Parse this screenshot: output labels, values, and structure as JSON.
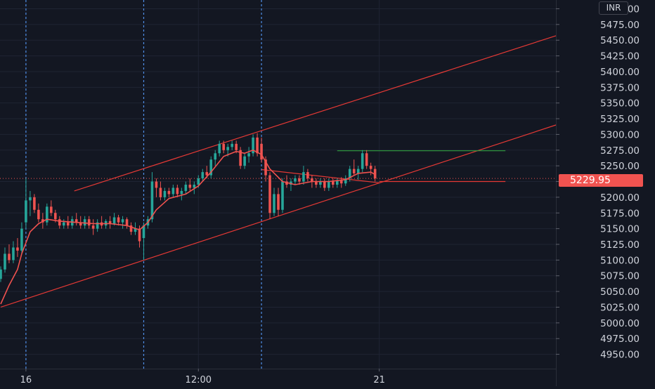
{
  "colors": {
    "background": "#131722",
    "grid": "#1f2433",
    "axis_text": "#d1d4dc",
    "bull": "#26a69a",
    "bear": "#ef5350",
    "ma_line": "#f0524f",
    "channel": "#e53935",
    "session_line": "#4f8fe8",
    "resistance": "#2e9e3e",
    "price_tag_bg": "#f05350"
  },
  "currency_label": "INR",
  "last_price_label": "5229.95",
  "chart_data": {
    "type": "candlestick",
    "title": "",
    "xlabel": "",
    "ylabel": "",
    "currency": "INR",
    "ylim": [
      4935,
      5505
    ],
    "y_ticks": [
      4950,
      4975,
      5000,
      5025,
      5050,
      5075,
      5100,
      5125,
      5150,
      5175,
      5200,
      5225,
      5250,
      5275,
      5300,
      5325,
      5350,
      5375,
      5400,
      5425,
      5450,
      5475,
      5500
    ],
    "y_tick_labels": [
      "4950.00",
      "4975.00",
      "5000.00",
      "5025.00",
      "5050.00",
      "5075.00",
      "5100.00",
      "5125.00",
      "5150.00",
      "5175.00",
      "5200.00",
      "5225.00",
      "5250.00",
      "5275.00",
      "5300.00",
      "5325.00",
      "5350.00",
      "5375.00",
      "5400.00",
      "5425.00",
      "5450.00",
      "5475.00",
      "5500.00"
    ],
    "x_range": [
      0,
      132
    ],
    "x_ticks": [
      {
        "x": 6,
        "label": "16"
      },
      {
        "x": 47,
        "label": "12:00"
      },
      {
        "x": 90,
        "label": "21"
      }
    ],
    "session_separators": [
      6,
      34,
      62
    ],
    "last_price": 5229.95,
    "candles": [
      [
        0,
        5070,
        5090,
        5065,
        5085
      ],
      [
        1,
        5085,
        5120,
        5080,
        5110
      ],
      [
        2,
        5110,
        5125,
        5095,
        5100
      ],
      [
        3,
        5100,
        5130,
        5095,
        5120
      ],
      [
        4,
        5120,
        5135,
        5105,
        5115
      ],
      [
        5,
        5115,
        5160,
        5110,
        5150
      ],
      [
        6,
        5160,
        5230,
        5150,
        5195
      ],
      [
        7,
        5195,
        5210,
        5170,
        5200
      ],
      [
        8,
        5200,
        5205,
        5175,
        5180
      ],
      [
        9,
        5180,
        5190,
        5160,
        5165
      ],
      [
        10,
        5165,
        5175,
        5150,
        5160
      ],
      [
        11,
        5160,
        5190,
        5155,
        5185
      ],
      [
        12,
        5185,
        5195,
        5170,
        5175
      ],
      [
        13,
        5175,
        5180,
        5160,
        5165
      ],
      [
        14,
        5165,
        5170,
        5150,
        5155
      ],
      [
        15,
        5155,
        5165,
        5150,
        5160
      ],
      [
        16,
        5160,
        5170,
        5150,
        5155
      ],
      [
        17,
        5155,
        5170,
        5150,
        5165
      ],
      [
        18,
        5165,
        5175,
        5155,
        5160
      ],
      [
        19,
        5160,
        5170,
        5150,
        5155
      ],
      [
        20,
        5155,
        5170,
        5150,
        5165
      ],
      [
        21,
        5165,
        5170,
        5150,
        5155
      ],
      [
        22,
        5155,
        5165,
        5140,
        5150
      ],
      [
        23,
        5150,
        5165,
        5145,
        5160
      ],
      [
        24,
        5160,
        5170,
        5150,
        5155
      ],
      [
        25,
        5155,
        5165,
        5150,
        5162
      ],
      [
        26,
        5162,
        5170,
        5150,
        5158
      ],
      [
        27,
        5158,
        5175,
        5155,
        5168
      ],
      [
        28,
        5168,
        5172,
        5155,
        5160
      ],
      [
        29,
        5160,
        5170,
        5150,
        5165
      ],
      [
        30,
        5165,
        5168,
        5150,
        5155
      ],
      [
        31,
        5155,
        5160,
        5140,
        5145
      ],
      [
        32,
        5145,
        5160,
        5140,
        5150
      ],
      [
        33,
        5150,
        5155,
        5120,
        5130
      ],
      [
        34,
        5135,
        5160,
        5100,
        5155
      ],
      [
        35,
        5155,
        5170,
        5150,
        5165
      ],
      [
        36,
        5165,
        5240,
        5160,
        5225
      ],
      [
        37,
        5225,
        5230,
        5200,
        5215
      ],
      [
        38,
        5215,
        5225,
        5195,
        5200
      ],
      [
        39,
        5200,
        5215,
        5195,
        5210
      ],
      [
        40,
        5210,
        5215,
        5200,
        5205
      ],
      [
        41,
        5205,
        5220,
        5200,
        5215
      ],
      [
        42,
        5215,
        5220,
        5200,
        5205
      ],
      [
        43,
        5205,
        5215,
        5195,
        5210
      ],
      [
        44,
        5210,
        5225,
        5205,
        5220
      ],
      [
        45,
        5220,
        5230,
        5210,
        5215
      ],
      [
        46,
        5215,
        5225,
        5205,
        5220
      ],
      [
        47,
        5220,
        5235,
        5215,
        5230
      ],
      [
        48,
        5230,
        5245,
        5225,
        5240
      ],
      [
        49,
        5240,
        5250,
        5230,
        5235
      ],
      [
        50,
        5235,
        5265,
        5230,
        5260
      ],
      [
        51,
        5260,
        5275,
        5250,
        5270
      ],
      [
        52,
        5270,
        5290,
        5265,
        5285
      ],
      [
        53,
        5285,
        5290,
        5270,
        5275
      ],
      [
        54,
        5275,
        5285,
        5265,
        5280
      ],
      [
        55,
        5280,
        5290,
        5275,
        5285
      ],
      [
        56,
        5285,
        5290,
        5270,
        5275
      ],
      [
        57,
        5275,
        5280,
        5245,
        5250
      ],
      [
        58,
        5250,
        5270,
        5245,
        5265
      ],
      [
        59,
        5265,
        5280,
        5255,
        5270
      ],
      [
        60,
        5270,
        5300,
        5265,
        5295
      ],
      [
        61,
        5295,
        5302,
        5265,
        5270
      ],
      [
        62,
        5285,
        5295,
        5255,
        5260
      ],
      [
        63,
        5260,
        5265,
        5225,
        5235
      ],
      [
        64,
        5235,
        5240,
        5165,
        5175
      ],
      [
        65,
        5175,
        5215,
        5170,
        5205
      ],
      [
        66,
        5205,
        5215,
        5170,
        5180
      ],
      [
        67,
        5180,
        5230,
        5175,
        5225
      ],
      [
        68,
        5225,
        5235,
        5215,
        5220
      ],
      [
        69,
        5220,
        5230,
        5210,
        5225
      ],
      [
        70,
        5225,
        5235,
        5220,
        5230
      ],
      [
        71,
        5230,
        5235,
        5220,
        5225
      ],
      [
        72,
        5225,
        5250,
        5220,
        5240
      ],
      [
        73,
        5240,
        5245,
        5225,
        5230
      ],
      [
        74,
        5230,
        5235,
        5215,
        5225
      ],
      [
        75,
        5225,
        5230,
        5215,
        5220
      ],
      [
        76,
        5220,
        5230,
        5215,
        5225
      ],
      [
        77,
        5225,
        5230,
        5210,
        5215
      ],
      [
        78,
        5215,
        5230,
        5210,
        5225
      ],
      [
        79,
        5225,
        5230,
        5215,
        5220
      ],
      [
        80,
        5220,
        5230,
        5215,
        5227
      ],
      [
        81,
        5227,
        5232,
        5215,
        5222
      ],
      [
        82,
        5222,
        5235,
        5218,
        5230
      ],
      [
        83,
        5230,
        5250,
        5225,
        5245
      ],
      [
        84,
        5245,
        5260,
        5235,
        5238
      ],
      [
        85,
        5238,
        5250,
        5228,
        5245
      ],
      [
        86,
        5245,
        5275,
        5240,
        5270
      ],
      [
        87,
        5270,
        5275,
        5245,
        5250
      ],
      [
        88,
        5250,
        5255,
        5235,
        5245
      ],
      [
        89,
        5245,
        5250,
        5225,
        5230
      ]
    ],
    "moving_average": [
      [
        0,
        5030
      ],
      [
        2,
        5060
      ],
      [
        4,
        5085
      ],
      [
        5,
        5110
      ],
      [
        7,
        5145
      ],
      [
        9,
        5158
      ],
      [
        11,
        5165
      ],
      [
        14,
        5162
      ],
      [
        18,
        5160
      ],
      [
        22,
        5158
      ],
      [
        26,
        5158
      ],
      [
        30,
        5155
      ],
      [
        33,
        5148
      ],
      [
        35,
        5160
      ],
      [
        37,
        5180
      ],
      [
        40,
        5198
      ],
      [
        44,
        5205
      ],
      [
        47,
        5218
      ],
      [
        50,
        5240
      ],
      [
        53,
        5265
      ],
      [
        56,
        5273
      ],
      [
        58,
        5270
      ],
      [
        60,
        5275
      ],
      [
        62,
        5268
      ],
      [
        64,
        5245
      ],
      [
        67,
        5225
      ],
      [
        70,
        5220
      ],
      [
        74,
        5225
      ],
      [
        78,
        5225
      ],
      [
        82,
        5228
      ],
      [
        85,
        5238
      ],
      [
        88,
        5240
      ],
      [
        89,
        5236
      ]
    ],
    "trendlines": [
      {
        "kind": "channel-upper",
        "points": [
          [
            17.5,
            5210
          ],
          [
            132,
            5457
          ]
        ]
      },
      {
        "kind": "channel-lower",
        "points": [
          [
            0,
            5025
          ],
          [
            132,
            5315
          ]
        ]
      },
      {
        "kind": "channel-mid",
        "points": [
          [
            62,
            5244
          ],
          [
            90,
            5223
          ]
        ]
      },
      {
        "kind": "resistance",
        "points": [
          [
            80,
            5274
          ],
          [
            120,
            5274
          ]
        ]
      },
      {
        "kind": "support",
        "points": [
          [
            90,
            5225
          ],
          [
            120,
            5225
          ]
        ]
      }
    ]
  }
}
